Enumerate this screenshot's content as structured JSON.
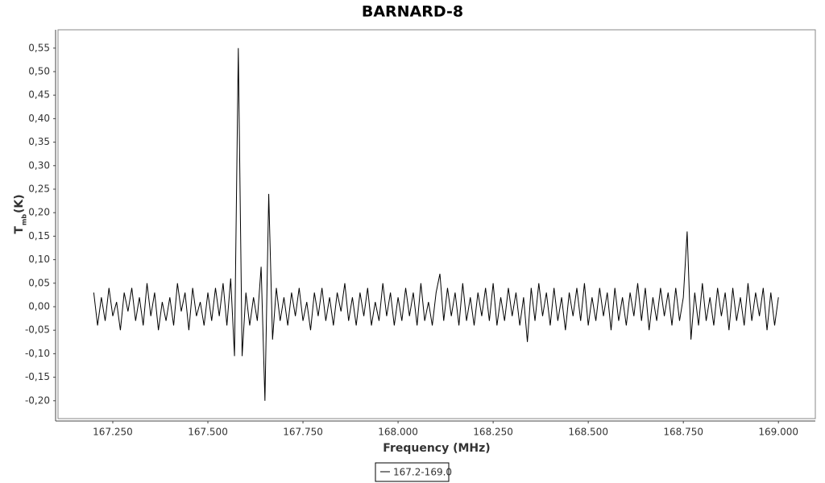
{
  "chart_data": {
    "type": "line",
    "title": "BARNARD-8",
    "x_label": "Frequency (MHz)",
    "y_label": "T",
    "y_label_subscript": "mb",
    "y_label_unit": "(K)",
    "x": [
      167.2,
      167.21,
      167.22,
      167.23,
      167.24,
      167.25,
      167.26,
      167.27,
      167.28,
      167.29,
      167.3,
      167.31,
      167.32,
      167.33,
      167.34,
      167.35,
      167.36,
      167.37,
      167.38,
      167.39,
      167.4,
      167.41,
      167.42,
      167.43,
      167.44,
      167.45,
      167.46,
      167.47,
      167.48,
      167.49,
      167.5,
      167.51,
      167.52,
      167.53,
      167.54,
      167.55,
      167.56,
      167.57,
      167.58,
      167.59,
      167.6,
      167.61,
      167.62,
      167.63,
      167.64,
      167.65,
      167.66,
      167.67,
      167.68,
      167.69,
      167.7,
      167.71,
      167.72,
      167.73,
      167.74,
      167.75,
      167.76,
      167.77,
      167.78,
      167.79,
      167.8,
      167.81,
      167.82,
      167.83,
      167.84,
      167.85,
      167.86,
      167.87,
      167.88,
      167.89,
      167.9,
      167.91,
      167.92,
      167.93,
      167.94,
      167.95,
      167.96,
      167.97,
      167.98,
      167.99,
      168,
      168.01,
      168.02,
      168.03,
      168.04,
      168.05,
      168.06,
      168.07,
      168.08,
      168.09,
      168.1,
      168.11,
      168.12,
      168.13,
      168.14,
      168.15,
      168.16,
      168.17,
      168.18,
      168.19,
      168.2,
      168.21,
      168.22,
      168.23,
      168.24,
      168.25,
      168.26,
      168.27,
      168.28,
      168.29,
      168.3,
      168.31,
      168.32,
      168.33,
      168.34,
      168.35,
      168.36,
      168.37,
      168.38,
      168.39,
      168.4,
      168.41,
      168.42,
      168.43,
      168.44,
      168.45,
      168.46,
      168.47,
      168.48,
      168.49,
      168.5,
      168.51,
      168.52,
      168.53,
      168.54,
      168.55,
      168.56,
      168.57,
      168.58,
      168.59,
      168.6,
      168.61,
      168.62,
      168.63,
      168.64,
      168.65,
      168.66,
      168.67,
      168.68,
      168.69,
      168.7,
      168.71,
      168.72,
      168.73,
      168.74,
      168.75,
      168.76,
      168.77,
      168.78,
      168.79,
      168.8,
      168.81,
      168.82,
      168.83,
      168.84,
      168.85,
      168.86,
      168.87,
      168.88,
      168.89,
      168.9,
      168.91,
      168.92,
      168.93,
      168.94,
      168.95,
      168.96,
      168.97,
      168.98,
      168.99,
      169
    ],
    "series": [
      {
        "name": "167.2-169.0",
        "color": "#000000",
        "values": [
          0.03,
          -0.04,
          0.02,
          -0.03,
          0.04,
          -0.02,
          0.01,
          -0.05,
          0.03,
          -0.01,
          0.04,
          -0.03,
          0.02,
          -0.04,
          0.05,
          -0.02,
          0.03,
          -0.05,
          0.01,
          -0.03,
          0.02,
          -0.04,
          0.05,
          -0.01,
          0.03,
          -0.05,
          0.04,
          -0.02,
          0.01,
          -0.04,
          0.03,
          -0.03,
          0.04,
          -0.02,
          0.05,
          -0.04,
          0.06,
          -0.105,
          0.55,
          -0.105,
          0.03,
          -0.04,
          0.02,
          -0.03,
          0.085,
          -0.2,
          0.24,
          -0.07,
          0.04,
          -0.03,
          0.02,
          -0.04,
          0.03,
          -0.02,
          0.04,
          -0.03,
          0.01,
          -0.05,
          0.03,
          -0.02,
          0.04,
          -0.03,
          0.02,
          -0.04,
          0.03,
          -0.01,
          0.05,
          -0.03,
          0.02,
          -0.04,
          0.03,
          -0.02,
          0.04,
          -0.04,
          0.01,
          -0.03,
          0.05,
          -0.02,
          0.03,
          -0.04,
          0.02,
          -0.03,
          0.04,
          -0.02,
          0.03,
          -0.04,
          0.05,
          -0.03,
          0.01,
          -0.04,
          0.03,
          0.07,
          -0.03,
          0.04,
          -0.02,
          0.03,
          -0.04,
          0.05,
          -0.03,
          0.02,
          -0.04,
          0.03,
          -0.02,
          0.04,
          -0.03,
          0.05,
          -0.04,
          0.02,
          -0.03,
          0.04,
          -0.02,
          0.03,
          -0.04,
          0.02,
          -0.075,
          0.04,
          -0.03,
          0.05,
          -0.02,
          0.03,
          -0.04,
          0.04,
          -0.03,
          0.02,
          -0.05,
          0.03,
          -0.02,
          0.04,
          -0.03,
          0.05,
          -0.04,
          0.02,
          -0.03,
          0.04,
          -0.02,
          0.03,
          -0.05,
          0.04,
          -0.03,
          0.02,
          -0.04,
          0.03,
          -0.02,
          0.05,
          -0.03,
          0.04,
          -0.05,
          0.02,
          -0.03,
          0.04,
          -0.02,
          0.03,
          -0.04,
          0.04,
          -0.03,
          0.02,
          0.16,
          -0.07,
          0.03,
          -0.04,
          0.05,
          -0.03,
          0.02,
          -0.04,
          0.04,
          -0.02,
          0.03,
          -0.05,
          0.04,
          -0.03,
          0.02,
          -0.04,
          0.05,
          -0.03,
          0.03,
          -0.02,
          0.04,
          -0.05,
          0.03,
          -0.04,
          0.02
        ]
      }
    ],
    "xlim": [
      167.106,
      169.097
    ],
    "ylim": [
      -0.238,
      0.589
    ],
    "xticks": [
      {
        "value": 167.25,
        "label": "167.250"
      },
      {
        "value": 167.5,
        "label": "167.500"
      },
      {
        "value": 167.75,
        "label": "167.750"
      },
      {
        "value": 168,
        "label": "168.000"
      },
      {
        "value": 168.25,
        "label": "168.250"
      },
      {
        "value": 168.5,
        "label": "168.500"
      },
      {
        "value": 168.75,
        "label": "168.750"
      },
      {
        "value": 169,
        "label": "169.000"
      }
    ],
    "yticks": [
      {
        "value": -0.2,
        "label": "-0,20"
      },
      {
        "value": -0.15,
        "label": "-0,15"
      },
      {
        "value": -0.1,
        "label": "-0,10"
      },
      {
        "value": -0.05,
        "label": "-0,05"
      },
      {
        "value": 0,
        "label": "0,00"
      },
      {
        "value": 0.05,
        "label": "0,05"
      },
      {
        "value": 0.1,
        "label": "0,10"
      },
      {
        "value": 0.15,
        "label": "0,15"
      },
      {
        "value": 0.2,
        "label": "0,20"
      },
      {
        "value": 0.25,
        "label": "0,25"
      },
      {
        "value": 0.3,
        "label": "0,30"
      },
      {
        "value": 0.35,
        "label": "0,35"
      },
      {
        "value": 0.4,
        "label": "0,40"
      },
      {
        "value": 0.45,
        "label": "0,45"
      },
      {
        "value": 0.5,
        "label": "0,50"
      },
      {
        "value": 0.55,
        "label": "0,55"
      }
    ],
    "grid": false,
    "legend": "bottom"
  }
}
